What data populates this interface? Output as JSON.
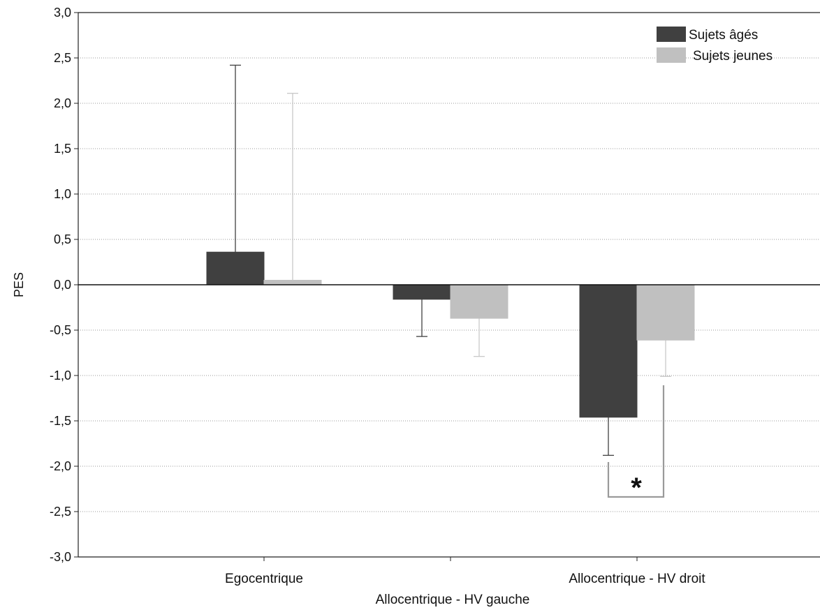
{
  "chart_data": {
    "type": "bar",
    "title": "",
    "xlabel": "",
    "ylabel": "PES",
    "ylim": [
      -3.0,
      3.0
    ],
    "yticks": [
      "3,0",
      "2,5",
      "2,0",
      "1,5",
      "1,0",
      "0,5",
      "0,0",
      "-0,5",
      "-1,0",
      "-1,5",
      "-2,0",
      "-2,5",
      "-3,0"
    ],
    "ytick_values": [
      3.0,
      2.5,
      2.0,
      1.5,
      1.0,
      0.5,
      0.0,
      -0.5,
      -1.0,
      -1.5,
      -2.0,
      -2.5,
      -3.0
    ],
    "categories": [
      "Egocentrique",
      "Allocentrique - HV gauche",
      "Allocentrique - HV droit"
    ],
    "series": [
      {
        "name": "Sujets âgés",
        "color": "#404040",
        "errorbar_color": "#404040",
        "values": [
          0.36,
          -0.16,
          -1.46
        ],
        "error_ends": [
          2.42,
          -0.57,
          -1.88
        ]
      },
      {
        "name": "Sujets jeunes",
        "color": "#c0c0c0",
        "errorbar_color": "#c8c8c8",
        "values": [
          0.05,
          -0.37,
          -0.61
        ],
        "error_ends": [
          2.11,
          -0.79,
          -1.01
        ]
      }
    ],
    "grid": "horizontal dotted",
    "legend_position": "top-right",
    "annotation": {
      "text": "*",
      "category": "Allocentrique - HV droit"
    }
  }
}
